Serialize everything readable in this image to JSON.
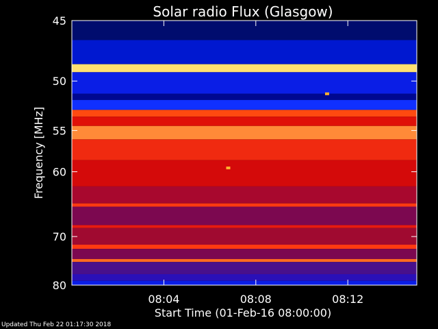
{
  "chart_data": {
    "type": "heatmap",
    "title": "Solar radio Flux (Glasgow)",
    "xlabel": "Start Time (01-Feb-16 08:00:00)",
    "ylabel": "Frequency [MHz]",
    "x_unit": "minutes after 08:00:00",
    "xlim": [
      0,
      15
    ],
    "ylim": [
      45,
      80
    ],
    "x_ticks": [
      {
        "value": 4,
        "label": "08:04"
      },
      {
        "value": 8,
        "label": "08:08"
      },
      {
        "value": 12,
        "label": "08:12"
      }
    ],
    "y_ticks": [
      {
        "value": 45,
        "label": "45"
      },
      {
        "value": 50,
        "label": "50"
      },
      {
        "value": 55,
        "label": "55"
      },
      {
        "value": 60,
        "label": "60"
      },
      {
        "value": 70,
        "label": "70"
      },
      {
        "value": 80,
        "label": "80"
      }
    ],
    "frequency_bands": [
      {
        "from": 45,
        "to": 46.5,
        "color": "#000c6e"
      },
      {
        "from": 46.5,
        "to": 48.5,
        "color": "#0018d0"
      },
      {
        "from": 48.5,
        "to": 49.2,
        "color": "#ffe070"
      },
      {
        "from": 49.2,
        "to": 51.2,
        "color": "#0a1ee6"
      },
      {
        "from": 51.2,
        "to": 51.8,
        "color": "#000890"
      },
      {
        "from": 51.8,
        "to": 52.8,
        "color": "#1030ff"
      },
      {
        "from": 52.8,
        "to": 53.5,
        "color": "#ff4a10"
      },
      {
        "from": 53.5,
        "to": 54.5,
        "color": "#e01008"
      },
      {
        "from": 54.5,
        "to": 56.0,
        "color": "#ff8a38"
      },
      {
        "from": 56.0,
        "to": 58.5,
        "color": "#f02a10"
      },
      {
        "from": 58.5,
        "to": 62.0,
        "color": "#d40a0a"
      },
      {
        "from": 62.0,
        "to": 64.5,
        "color": "#a8082e"
      },
      {
        "from": 64.5,
        "to": 65.0,
        "color": "#ff3a10"
      },
      {
        "from": 65.0,
        "to": 68.0,
        "color": "#7c0850"
      },
      {
        "from": 68.0,
        "to": 68.5,
        "color": "#e81a10"
      },
      {
        "from": 68.5,
        "to": 71.5,
        "color": "#a00a30"
      },
      {
        "from": 71.5,
        "to": 72.3,
        "color": "#ff3a10"
      },
      {
        "from": 72.3,
        "to": 74.3,
        "color": "#7c0850"
      },
      {
        "from": 74.3,
        "to": 74.9,
        "color": "#ff6a20"
      },
      {
        "from": 74.9,
        "to": 77.5,
        "color": "#48108c"
      },
      {
        "from": 77.5,
        "to": 79.0,
        "color": "#2a10b8"
      },
      {
        "from": 79.0,
        "to": 80.0,
        "color": "#0a1ee6"
      }
    ],
    "hot_spots": [
      {
        "time": 6.8,
        "freq": 59.5,
        "color": "#ffb030"
      },
      {
        "time": 11.1,
        "freq": 51.2,
        "color": "#ffb030"
      }
    ],
    "colormap": "blue-red-yellow",
    "grid": false,
    "legend": "none"
  },
  "updated_text": "Updated Thu Feb 22 01:17:30 2018"
}
